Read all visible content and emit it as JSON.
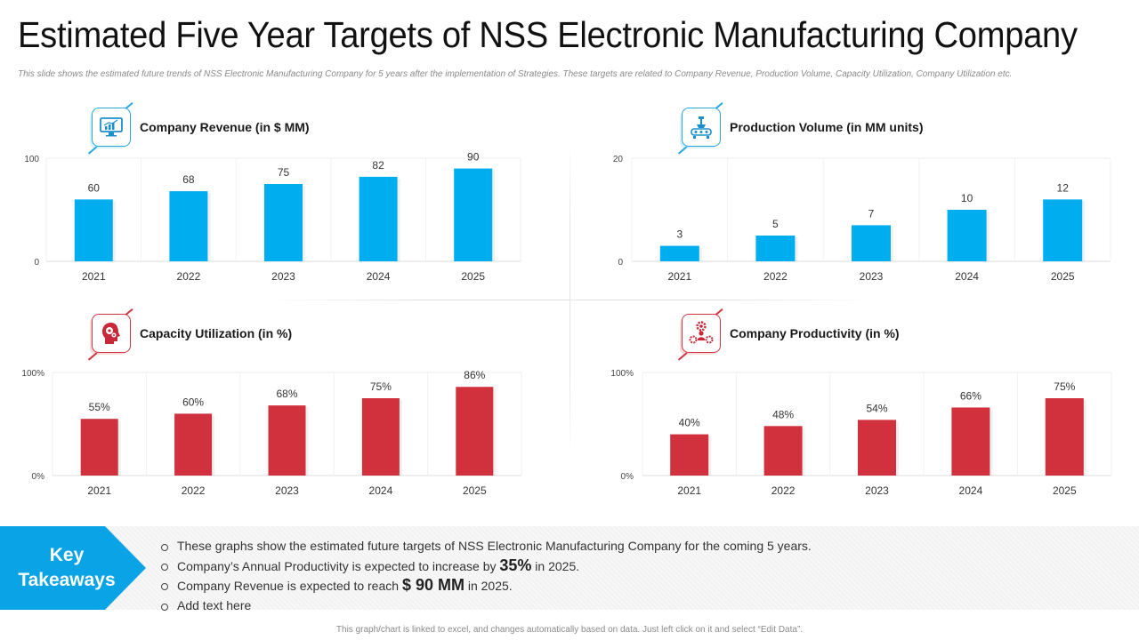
{
  "title": "Estimated Five Year Targets of NSS Electronic Manufacturing Company",
  "subtitle": "This slide shows the estimated future trends of NSS Electronic Manufacturing Company for 5 years after the implementation  of Strategies. These targets are related to Company Revenue, Production Volume, Capacity Utilization,  Company Utilization  etc.",
  "colors": {
    "blue": "#00aeef",
    "red": "#d0313d",
    "accent": "#0aa3e6"
  },
  "panels": [
    {
      "title": "Company Revenue (in $ MM)",
      "icon": "monitor-chart-icon"
    },
    {
      "title": "Production Volume (in MM units)",
      "icon": "production-machine-icon"
    },
    {
      "title": "Capacity Utilization (in %)",
      "icon": "head-gears-icon"
    },
    {
      "title": "Company Productivity (in %)",
      "icon": "person-gears-icon"
    }
  ],
  "chart_data": [
    {
      "type": "bar",
      "title": "Company Revenue (in $ MM)",
      "categories": [
        "2021",
        "2022",
        "2023",
        "2024",
        "2025"
      ],
      "values": [
        60,
        68,
        75,
        82,
        90
      ],
      "labels": [
        "60",
        "68",
        "75",
        "82",
        "90"
      ],
      "ylim": [
        0,
        100
      ],
      "yticks": [
        "0",
        "100"
      ],
      "color": "#00aeef"
    },
    {
      "type": "bar",
      "title": "Production Volume (in MM units)",
      "categories": [
        "2021",
        "2022",
        "2023",
        "2024",
        "2025"
      ],
      "values": [
        3,
        5,
        7,
        10,
        12
      ],
      "labels": [
        "3",
        "5",
        "7",
        "10",
        "12"
      ],
      "ylim": [
        0,
        20
      ],
      "yticks": [
        "0",
        "20"
      ],
      "color": "#00aeef"
    },
    {
      "type": "bar",
      "title": "Capacity Utilization (in %)",
      "categories": [
        "2021",
        "2022",
        "2023",
        "2024",
        "2025"
      ],
      "values": [
        55,
        60,
        68,
        75,
        86
      ],
      "labels": [
        "55%",
        "60%",
        "68%",
        "75%",
        "86%"
      ],
      "ylim": [
        0,
        100
      ],
      "yticks": [
        "0%",
        "100%"
      ],
      "color": "#d0313d"
    },
    {
      "type": "bar",
      "title": "Company Productivity (in %)",
      "categories": [
        "2021",
        "2022",
        "2023",
        "2024",
        "2025"
      ],
      "values": [
        40,
        48,
        54,
        66,
        75
      ],
      "labels": [
        "40%",
        "48%",
        "54%",
        "66%",
        "75%"
      ],
      "ylim": [
        0,
        100
      ],
      "yticks": [
        "0%",
        "100%"
      ],
      "color": "#d0313d"
    }
  ],
  "takeaways": {
    "label": "Key\nTakeaways",
    "bullets": [
      {
        "text": "These graphs show the estimated future targets of NSS Electronic Manufacturing Company for the coming 5 years."
      },
      {
        "pre": "Company’s Annual Productivity is expected to increase by ",
        "highlight": "35%",
        "post": " in 2025."
      },
      {
        "pre": "Company Revenue is expected to reach ",
        "highlight": "$ 90 MM",
        "post": " in 2025."
      },
      {
        "text": "Add text here"
      }
    ]
  },
  "footer": "This graph/chart is linked to excel, and changes automatically  based on data. Just left click on it and select “Edit Data”."
}
